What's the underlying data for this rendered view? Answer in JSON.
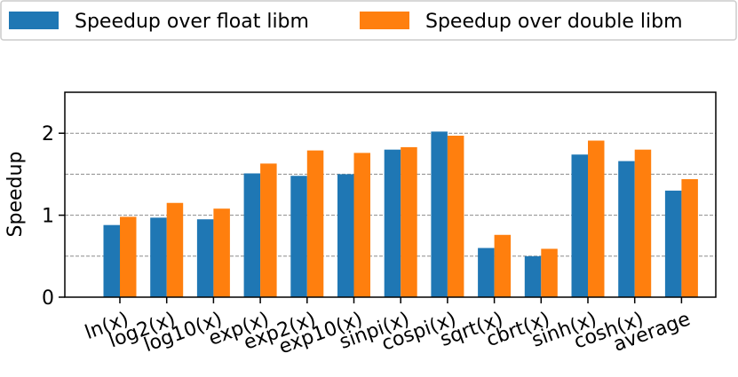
{
  "chart_data": {
    "type": "bar",
    "categories": [
      "ln(x)",
      "log2(x)",
      "log10(x)",
      "exp(x)",
      "exp2(x)",
      "exp10(x)",
      "sinpi(x)",
      "cospi(x)",
      "sqrt(x)",
      "cbrt(x)",
      "sinh(x)",
      "cosh(x)",
      "average"
    ],
    "series": [
      {
        "name": "Speedup over float libm",
        "color": "#1f77b4",
        "values": [
          0.88,
          0.97,
          0.95,
          1.51,
          1.48,
          1.5,
          1.8,
          2.02,
          0.6,
          0.5,
          1.74,
          1.66,
          1.3
        ]
      },
      {
        "name": "Speedup over double libm",
        "color": "#ff7f0e",
        "values": [
          0.98,
          1.15,
          1.08,
          1.63,
          1.79,
          1.76,
          1.83,
          1.97,
          0.76,
          0.59,
          1.91,
          1.8,
          1.44
        ]
      }
    ],
    "ylabel": "Speedup",
    "ylim": [
      0,
      2.5
    ],
    "yticks": [
      0,
      1,
      2
    ],
    "grid_y": [
      0.5,
      1,
      1.5,
      2
    ],
    "grid": "horizontal dashed",
    "legend": "top, two columns"
  }
}
